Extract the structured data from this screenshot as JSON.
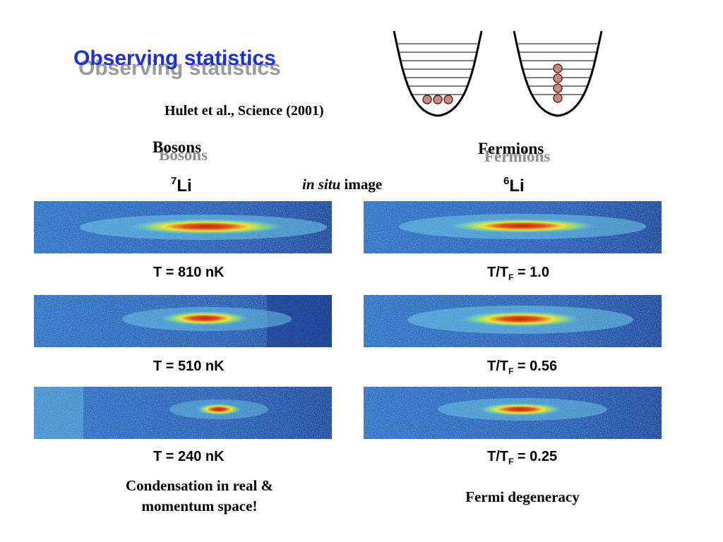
{
  "slide": {
    "title": "Observing statistics",
    "citation": "Hulet et al., Science (2001)",
    "left_column": {
      "heading": "Bosons",
      "isotope_mass": "7",
      "isotope_symbol": "Li"
    },
    "right_column": {
      "heading": "Fermions",
      "isotope_mass": "6",
      "isotope_symbol": "Li"
    },
    "insitu_italic": "in situ",
    "insitu_rest": " image",
    "boson_captions": [
      "T = 810 nK",
      "T = 510 nK",
      "T = 240 nK"
    ],
    "fermion_caption_prefix": "T/T",
    "fermion_caption_sub": "F",
    "fermion_caption_values": [
      " = 1.0",
      " = 0.56",
      " = 0.25"
    ],
    "boson_note_line1": "Condensation in real &",
    "boson_note_line2": "momentum space!",
    "fermion_note": "Fermi degeneracy"
  },
  "colors": {
    "title_blue": "#1a2ee6",
    "title_shadow": "#9a9a9a",
    "image_background_blue": "#1f4fa8",
    "cloud_core_red": "#d42a10",
    "particle_fill": "#c98a84"
  }
}
